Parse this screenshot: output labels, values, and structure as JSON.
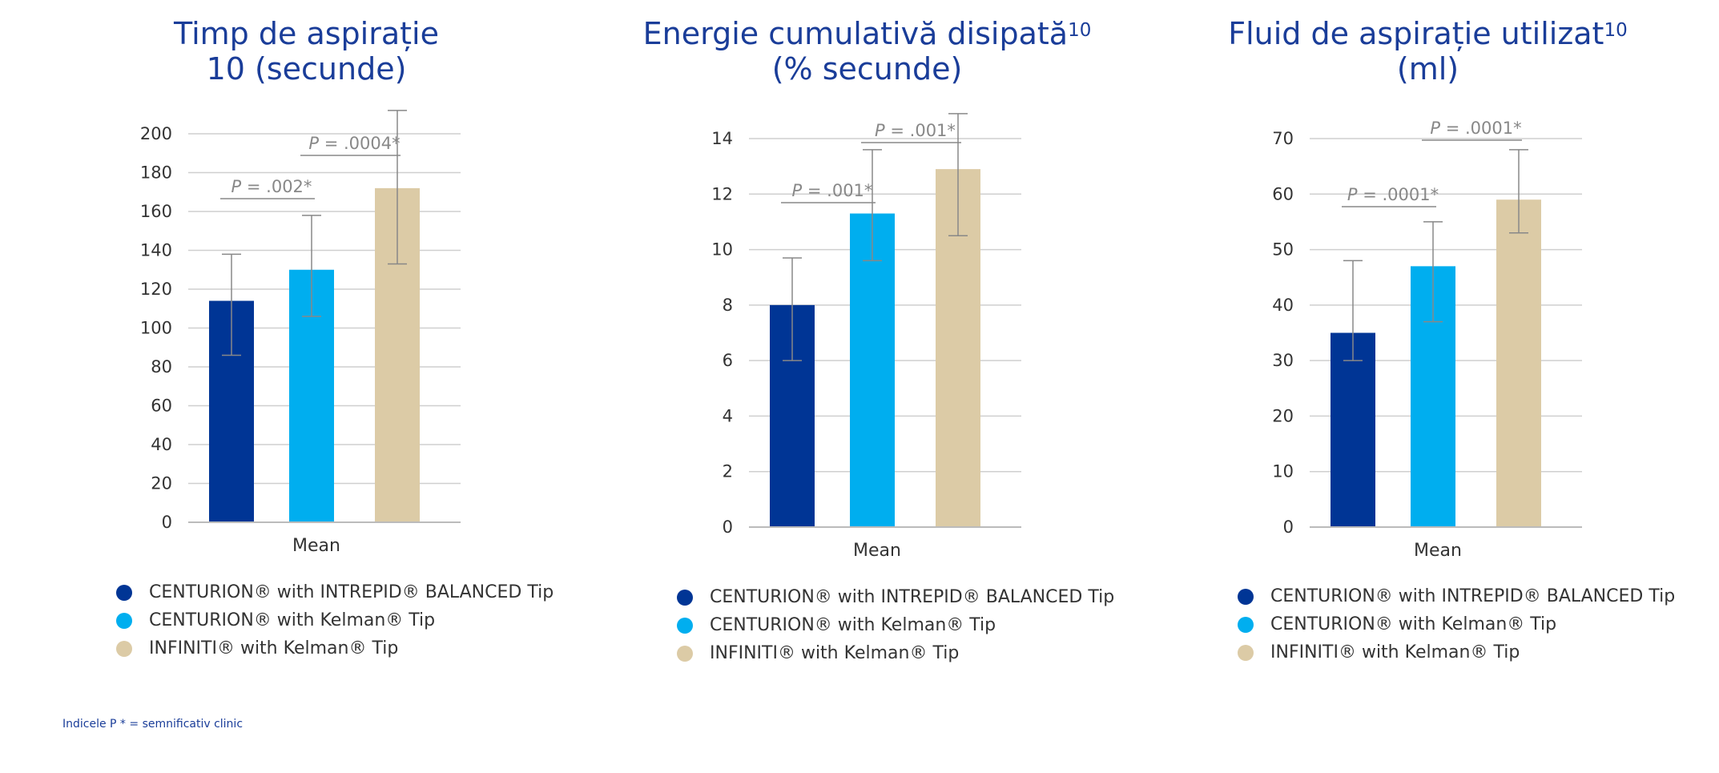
{
  "colors": {
    "series": [
      "#003595",
      "#00aeef",
      "#dccba6"
    ],
    "title": "#1a3d99",
    "grid": "#cfcfcf",
    "error": "#888888",
    "pvalue": "#888888"
  },
  "legend": [
    "CENTURION® with INTREPID® BALANCED Tip",
    "CENTURION® with Kelman® Tip",
    "INFINITI® with Kelman® Tip"
  ],
  "footnote": "Indicele P * = semnificativ clinic",
  "chart_data": [
    {
      "type": "bar",
      "title_lines": [
        "Timp de aspirație",
        "10 (secunde)"
      ],
      "title_sup": "",
      "xlabel": "Mean",
      "categories": [
        "Mean"
      ],
      "series": [
        {
          "name": "CENTURION® with INTREPID® BALANCED Tip",
          "values": [
            114
          ],
          "error_low": [
            86
          ],
          "error_high": [
            138
          ]
        },
        {
          "name": "CENTURION® with Kelman® Tip",
          "values": [
            130
          ],
          "error_low": [
            106
          ],
          "error_high": [
            158
          ]
        },
        {
          "name": "INFINITI® with Kelman® Tip",
          "values": [
            172
          ],
          "error_low": [
            133
          ],
          "error_high": [
            212
          ]
        }
      ],
      "ylim": [
        0,
        200
      ],
      "yticks": [
        0,
        20,
        40,
        60,
        80,
        100,
        120,
        140,
        160,
        180,
        200
      ],
      "p_values": [
        {
          "text": "P = .002*",
          "p_letter": "P",
          "rest": " = .002*",
          "from": 0,
          "to": 1
        },
        {
          "text": "P = .0004*",
          "p_letter": "P",
          "rest": " = .0004*",
          "from": 1,
          "to": 2
        }
      ]
    },
    {
      "type": "bar",
      "title_lines": [
        "Energie cumulativă disipată",
        "(% secunde)"
      ],
      "title_sup": "10",
      "xlabel": "Mean",
      "categories": [
        "Mean"
      ],
      "series": [
        {
          "name": "CENTURION® with INTREPID® BALANCED Tip",
          "values": [
            8.0
          ],
          "error_low": [
            6.0
          ],
          "error_high": [
            9.7
          ]
        },
        {
          "name": "CENTURION® with Kelman® Tip",
          "values": [
            11.3
          ],
          "error_low": [
            9.6
          ],
          "error_high": [
            13.6
          ]
        },
        {
          "name": "INFINITI® with Kelman® Tip",
          "values": [
            12.9
          ],
          "error_low": [
            10.5
          ],
          "error_high": [
            14.9
          ]
        }
      ],
      "ylim": [
        0,
        14
      ],
      "yticks": [
        0,
        2,
        4,
        6,
        8,
        10,
        12,
        14
      ],
      "p_values": [
        {
          "text": "P = .001*",
          "p_letter": "P",
          "rest": " = .001*",
          "from": 0,
          "to": 1
        },
        {
          "text": "P = .001*",
          "p_letter": "P",
          "rest": " = .001*",
          "from": 1,
          "to": 2
        }
      ]
    },
    {
      "type": "bar",
      "title_lines": [
        "Fluid de aspirație utilizat",
        "(ml)"
      ],
      "title_sup": "10",
      "xlabel": "Mean",
      "categories": [
        "Mean"
      ],
      "series": [
        {
          "name": "CENTURION® with INTREPID® BALANCED Tip",
          "values": [
            35
          ],
          "error_low": [
            30
          ],
          "error_high": [
            48
          ]
        },
        {
          "name": "CENTURION® with Kelman® Tip",
          "values": [
            47
          ],
          "error_low": [
            37
          ],
          "error_high": [
            55
          ]
        },
        {
          "name": "INFINITI® with Kelman® Tip",
          "values": [
            59
          ],
          "error_low": [
            53
          ],
          "error_high": [
            68
          ]
        }
      ],
      "ylim": [
        0,
        70
      ],
      "yticks": [
        0,
        10,
        20,
        30,
        40,
        50,
        60,
        70
      ],
      "p_values": [
        {
          "text": "P = .0001*",
          "p_letter": "P",
          "rest": " = .0001*",
          "from": 0,
          "to": 1
        },
        {
          "text": "P = .0001*",
          "p_letter": "P",
          "rest": " = .0001*",
          "from": 1,
          "to": 2
        }
      ]
    }
  ]
}
